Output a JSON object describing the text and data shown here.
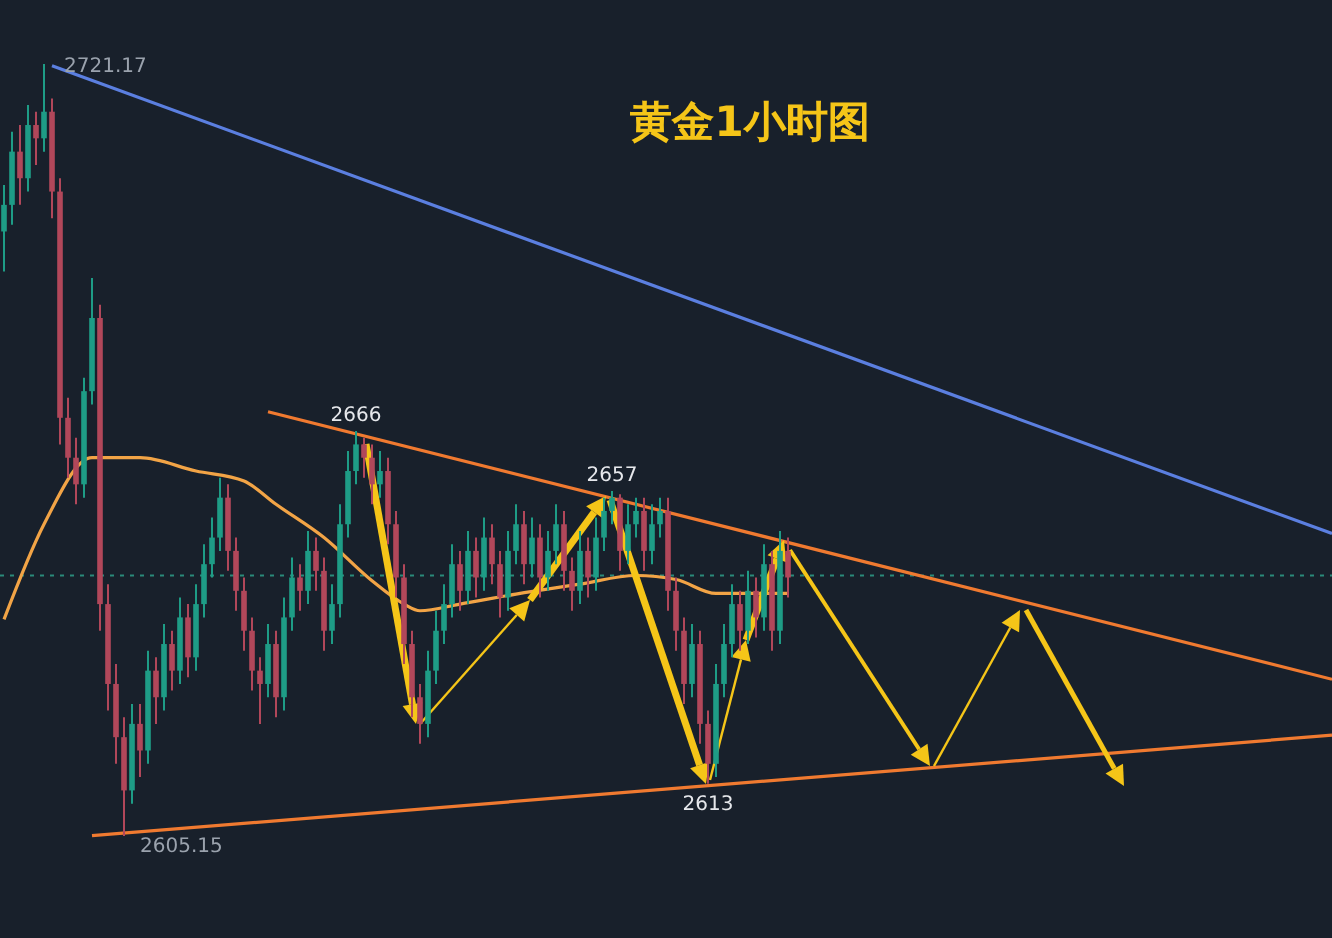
{
  "chart_data": {
    "type": "candlestick",
    "title": "黄金1小时图",
    "categories": [
      null,
      null,
      null,
      null,
      null,
      null,
      null,
      null,
      null,
      null,
      null,
      null,
      null,
      null,
      null,
      null,
      null,
      null,
      null,
      null,
      null,
      null,
      null,
      null,
      null,
      null,
      null,
      null,
      null,
      null,
      null,
      null,
      null,
      null,
      null,
      null,
      null,
      null,
      null,
      null,
      null,
      null,
      null,
      null,
      null,
      null,
      null,
      null,
      null,
      null,
      null,
      null,
      null,
      null,
      null,
      null,
      null,
      null,
      null,
      null,
      null,
      null,
      null,
      null,
      null,
      null,
      null,
      null,
      null,
      null,
      null,
      null,
      null,
      null,
      null,
      null,
      null,
      null,
      null,
      null,
      null,
      null,
      null,
      null,
      null,
      null,
      null,
      null,
      null,
      null,
      null,
      null,
      null,
      null,
      null,
      null,
      null,
      null,
      null,
      null,
      null,
      null,
      null,
      null,
      null,
      null,
      null,
      null,
      null,
      null,
      null,
      null,
      null,
      null,
      null,
      null,
      null,
      null,
      null,
      null,
      null,
      null,
      null,
      null,
      null,
      null,
      null,
      null,
      null,
      null,
      null,
      null,
      null,
      null,
      null,
      null,
      null,
      null,
      null,
      null,
      null,
      null,
      null,
      null,
      null,
      null,
      null,
      null,
      null,
      null,
      null,
      null,
      null,
      null,
      null,
      null,
      null,
      null,
      null,
      null,
      null,
      null,
      null,
      null,
      null,
      null,
      null
    ],
    "ohlc": [
      [
        2696,
        2703,
        2690,
        2700
      ],
      [
        2700,
        2711,
        2697,
        2708
      ],
      [
        2708,
        2712,
        2700,
        2704
      ],
      [
        2704,
        2715,
        2702,
        2712
      ],
      [
        2712,
        2714,
        2706,
        2710
      ],
      [
        2710,
        2721.17,
        2708,
        2714
      ],
      [
        2714,
        2716,
        2698,
        2702
      ],
      [
        2702,
        2704,
        2664,
        2668
      ],
      [
        2668,
        2671,
        2659,
        2662
      ],
      [
        2662,
        2665,
        2655,
        2658
      ],
      [
        2658,
        2674,
        2656,
        2672
      ],
      [
        2672,
        2689,
        2670,
        2683
      ],
      [
        2683,
        2685,
        2636,
        2640
      ],
      [
        2640,
        2643,
        2624,
        2628
      ],
      [
        2628,
        2631,
        2616,
        2620
      ],
      [
        2620,
        2623,
        2605.15,
        2612
      ],
      [
        2612,
        2625,
        2610,
        2622
      ],
      [
        2622,
        2625,
        2614,
        2618
      ],
      [
        2618,
        2633,
        2616,
        2630
      ],
      [
        2630,
        2632,
        2622,
        2626
      ],
      [
        2626,
        2637,
        2624,
        2634
      ],
      [
        2634,
        2636,
        2627,
        2630
      ],
      [
        2630,
        2641,
        2628,
        2638
      ],
      [
        2638,
        2640,
        2629,
        2632
      ],
      [
        2632,
        2643,
        2630,
        2640
      ],
      [
        2640,
        2649,
        2638,
        2646
      ],
      [
        2646,
        2653,
        2644,
        2650
      ],
      [
        2650,
        2659,
        2648,
        2656
      ],
      [
        2656,
        2658,
        2645,
        2648
      ],
      [
        2648,
        2650,
        2639,
        2642
      ],
      [
        2642,
        2644,
        2633,
        2636
      ],
      [
        2636,
        2638,
        2627,
        2630
      ],
      [
        2630,
        2632,
        2622,
        2628
      ],
      [
        2628,
        2637,
        2626,
        2634
      ],
      [
        2634,
        2636,
        2623,
        2626
      ],
      [
        2626,
        2641,
        2624,
        2638
      ],
      [
        2638,
        2647,
        2636,
        2644
      ],
      [
        2644,
        2646,
        2639,
        2642
      ],
      [
        2642,
        2651,
        2640,
        2648
      ],
      [
        2648,
        2650,
        2642,
        2645
      ],
      [
        2645,
        2647,
        2633,
        2636
      ],
      [
        2636,
        2643,
        2634,
        2640
      ],
      [
        2640,
        2655,
        2638,
        2652
      ],
      [
        2652,
        2663,
        2650,
        2660
      ],
      [
        2660,
        2666,
        2658,
        2664
      ],
      [
        2664,
        2665,
        2659,
        2662
      ],
      [
        2662,
        2664,
        2655,
        2658
      ],
      [
        2658,
        2663,
        2656,
        2660
      ],
      [
        2660,
        2662,
        2649,
        2652
      ],
      [
        2652,
        2654,
        2641,
        2644
      ],
      [
        2644,
        2646,
        2631,
        2634
      ],
      [
        2634,
        2636,
        2623,
        2626
      ],
      [
        2626,
        2628,
        2619,
        2622
      ],
      [
        2622,
        2633,
        2620,
        2630
      ],
      [
        2630,
        2639,
        2628,
        2636
      ],
      [
        2636,
        2643,
        2634,
        2640
      ],
      [
        2640,
        2649,
        2638,
        2646
      ],
      [
        2646,
        2648,
        2639,
        2642
      ],
      [
        2642,
        2651,
        2640,
        2648
      ],
      [
        2648,
        2650,
        2641,
        2644
      ],
      [
        2644,
        2653,
        2642,
        2650
      ],
      [
        2650,
        2652,
        2643,
        2646
      ],
      [
        2646,
        2648,
        2638,
        2641
      ],
      [
        2641,
        2651,
        2639,
        2648
      ],
      [
        2648,
        2655,
        2646,
        2652
      ],
      [
        2652,
        2654,
        2643,
        2646
      ],
      [
        2646,
        2653,
        2644,
        2650
      ],
      [
        2650,
        2652,
        2641,
        2644
      ],
      [
        2644,
        2651,
        2642,
        2648
      ],
      [
        2648,
        2655,
        2646,
        2652
      ],
      [
        2652,
        2654,
        2642,
        2645
      ],
      [
        2645,
        2647,
        2639,
        2642
      ],
      [
        2642,
        2651,
        2640,
        2648
      ],
      [
        2648,
        2650,
        2641,
        2644
      ],
      [
        2644,
        2653,
        2642,
        2650
      ],
      [
        2650,
        2656,
        2648,
        2654
      ],
      [
        2654,
        2657,
        2652,
        2656
      ],
      [
        2656,
        2656.5,
        2645,
        2648
      ],
      [
        2648,
        2655,
        2646,
        2652
      ],
      [
        2652,
        2656,
        2650,
        2654
      ],
      [
        2654,
        2656,
        2645,
        2648
      ],
      [
        2648,
        2655,
        2646,
        2652
      ],
      [
        2652,
        2656,
        2650,
        2654
      ],
      [
        2654,
        2656,
        2639,
        2642
      ],
      [
        2642,
        2644,
        2633,
        2636
      ],
      [
        2636,
        2638,
        2625,
        2628
      ],
      [
        2628,
        2637,
        2626,
        2634
      ],
      [
        2634,
        2636,
        2619,
        2622
      ],
      [
        2622,
        2624,
        2613,
        2616
      ],
      [
        2616,
        2631,
        2614,
        2628
      ],
      [
        2628,
        2637,
        2626,
        2634
      ],
      [
        2634,
        2643,
        2632,
        2640
      ],
      [
        2640,
        2642,
        2633,
        2636
      ],
      [
        2636,
        2645,
        2634,
        2642
      ],
      [
        2642,
        2644,
        2635,
        2638
      ],
      [
        2638,
        2649,
        2636,
        2646
      ],
      [
        2646,
        2648,
        2633,
        2636
      ],
      [
        2636,
        2651,
        2634,
        2648
      ],
      [
        2648,
        2650,
        2641,
        2644
      ],
      null,
      null,
      null,
      null,
      null,
      null,
      null,
      null,
      null,
      null,
      null,
      null,
      null,
      null,
      null,
      null,
      null,
      null,
      null,
      null,
      null,
      null,
      null,
      null,
      null,
      null,
      null,
      null,
      null,
      null,
      null,
      null,
      null,
      null,
      null,
      null,
      null,
      null,
      null,
      null,
      null,
      null,
      null,
      null,
      null,
      null,
      null,
      null,
      null,
      null,
      null,
      null,
      null,
      null,
      null,
      null,
      null,
      null,
      null,
      null,
      null,
      null,
      null,
      null,
      null,
      null,
      null,
      null
    ],
    "series": [
      {
        "type": "line",
        "color": "#f2a446",
        "values": [
          2637.7,
          null,
          null,
          null,
          null,
          2652,
          null,
          null,
          null,
          null,
          null,
          2662,
          null,
          null,
          null,
          null,
          null,
          2662,
          null,
          null,
          null,
          null,
          null,
          null,
          2660,
          null,
          null,
          null,
          null,
          null,
          2658.5,
          null,
          null,
          null,
          2655,
          null,
          null,
          null,
          null,
          null,
          2650,
          null,
          null,
          null,
          null,
          null,
          2643.5,
          null,
          null,
          null,
          2640,
          null,
          2639,
          null,
          null,
          null,
          null,
          2640,
          null,
          null,
          null,
          null,
          null,
          null,
          2641.5,
          null,
          null,
          null,
          null,
          null,
          null,
          null,
          2643,
          null,
          null,
          null,
          null,
          null,
          null,
          2644.3,
          null,
          null,
          null,
          null,
          2643.7,
          null,
          null,
          null,
          null,
          2641.6,
          null,
          null,
          null,
          null,
          2641.6,
          null,
          null,
          null,
          2641.6,
          null,
          null,
          null,
          null,
          null,
          null,
          null,
          null,
          null,
          null,
          null,
          null,
          null,
          null,
          null,
          null,
          null,
          null,
          null,
          null,
          null,
          null,
          null,
          null,
          null,
          null,
          null,
          null,
          null,
          null,
          null,
          null,
          null,
          null,
          null,
          null,
          null,
          null,
          null,
          null,
          null,
          null,
          null,
          null,
          null,
          null,
          null,
          null,
          null,
          null,
          null,
          null,
          null,
          null,
          null,
          null,
          null,
          null,
          null,
          null,
          null,
          null,
          null,
          null,
          null,
          null,
          null,
          null
        ]
      },
      {
        "type": "line",
        "color": "#5b7fe0",
        "values": [
          null,
          null,
          null,
          null,
          null,
          null,
          2720.9,
          null,
          null,
          null,
          null,
          null,
          null,
          null,
          null,
          null,
          null,
          null,
          null,
          null,
          null,
          null,
          null,
          null,
          null,
          null,
          null,
          null,
          null,
          null,
          null,
          null,
          null,
          null,
          null,
          null,
          null,
          null,
          null,
          null,
          null,
          null,
          null,
          null,
          null,
          null,
          null,
          null,
          null,
          null,
          null,
          null,
          null,
          null,
          null,
          null,
          null,
          null,
          null,
          null,
          null,
          null,
          null,
          null,
          null,
          null,
          null,
          null,
          null,
          null,
          null,
          null,
          null,
          null,
          null,
          null,
          null,
          null,
          null,
          null,
          null,
          null,
          null,
          null,
          null,
          null,
          null,
          null,
          null,
          null,
          null,
          null,
          null,
          null,
          null,
          null,
          null,
          null,
          null,
          null,
          null,
          null,
          null,
          null,
          null,
          null,
          null,
          null,
          null,
          null,
          null,
          null,
          null,
          null,
          null,
          null,
          null,
          null,
          null,
          null,
          null,
          null,
          null,
          null,
          null,
          null,
          null,
          null,
          null,
          null,
          null,
          null,
          null,
          null,
          null,
          null,
          null,
          null,
          null,
          null,
          null,
          null,
          null,
          null,
          null,
          null,
          null,
          null,
          null,
          null,
          null,
          null,
          null,
          null,
          null,
          null,
          null,
          null,
          null,
          null,
          null,
          null,
          null,
          null,
          null,
          null,
          2650.6
        ]
      },
      {
        "type": "line",
        "color": "#f07a30",
        "values": [
          null,
          null,
          null,
          null,
          null,
          null,
          null,
          null,
          null,
          null,
          null,
          null,
          null,
          null,
          null,
          null,
          null,
          null,
          null,
          null,
          null,
          null,
          null,
          null,
          null,
          null,
          null,
          null,
          null,
          null,
          null,
          null,
          null,
          2668.9,
          null,
          null,
          null,
          null,
          null,
          null,
          null,
          null,
          null,
          null,
          null,
          null,
          null,
          null,
          null,
          null,
          null,
          null,
          null,
          null,
          null,
          null,
          null,
          null,
          null,
          null,
          null,
          null,
          null,
          null,
          null,
          null,
          null,
          null,
          null,
          null,
          null,
          null,
          null,
          null,
          null,
          null,
          null,
          null,
          null,
          null,
          null,
          null,
          null,
          null,
          null,
          null,
          null,
          null,
          null,
          null,
          null,
          null,
          null,
          null,
          null,
          null,
          null,
          null,
          null,
          null,
          null,
          null,
          null,
          null,
          null,
          null,
          null,
          null,
          null,
          null,
          null,
          null,
          null,
          null,
          null,
          null,
          null,
          null,
          null,
          null,
          null,
          null,
          null,
          null,
          null,
          null,
          null,
          null,
          null,
          null,
          null,
          null,
          null,
          null,
          null,
          null,
          null,
          null,
          null,
          null,
          null,
          null,
          null,
          null,
          null,
          null,
          null,
          null,
          null,
          null,
          null,
          null,
          null,
          null,
          null,
          null,
          null,
          null,
          null,
          null,
          null,
          null,
          null,
          null,
          null,
          null,
          2628.7
        ]
      },
      {
        "type": "line",
        "color": "#f07a30",
        "values": [
          null,
          null,
          null,
          null,
          null,
          null,
          null,
          null,
          null,
          null,
          null,
          2605.2,
          null,
          null,
          null,
          null,
          null,
          null,
          null,
          null,
          null,
          null,
          null,
          null,
          null,
          null,
          null,
          null,
          null,
          null,
          null,
          null,
          null,
          null,
          null,
          null,
          null,
          null,
          null,
          null,
          null,
          null,
          null,
          null,
          null,
          null,
          null,
          null,
          null,
          null,
          null,
          null,
          null,
          null,
          null,
          null,
          null,
          null,
          null,
          null,
          null,
          null,
          null,
          null,
          null,
          null,
          null,
          null,
          null,
          null,
          null,
          null,
          null,
          null,
          null,
          null,
          null,
          null,
          null,
          null,
          null,
          null,
          null,
          null,
          null,
          null,
          null,
          null,
          null,
          null,
          null,
          null,
          null,
          null,
          null,
          null,
          null,
          null,
          null,
          null,
          null,
          null,
          null,
          null,
          null,
          null,
          null,
          null,
          null,
          null,
          null,
          null,
          null,
          null,
          null,
          null,
          null,
          null,
          null,
          null,
          null,
          null,
          null,
          null,
          null,
          null,
          null,
          null,
          null,
          null,
          null,
          null,
          null,
          null,
          null,
          null,
          null,
          null,
          null,
          null,
          null,
          null,
          null,
          null,
          null,
          null,
          null,
          null,
          null,
          null,
          null,
          null,
          null,
          null,
          null,
          null,
          null,
          null,
          null,
          null,
          null,
          null,
          null,
          null,
          null,
          null,
          2620.3
        ]
      }
    ],
    "ref_lines": [
      {
        "axis": "y",
        "value": 2644.3,
        "color": "#2a8a7a",
        "line_style": "dotted"
      }
    ],
    "annotations": [
      "2721.17",
      {
        "text": "2605.15",
        "y": 2605.15
      },
      {
        "text": "2666",
        "y": 2666
      },
      {
        "text": "2657",
        "y": 2657
      },
      {
        "text": "2613",
        "y": 2613
      }
    ]
  }
}
